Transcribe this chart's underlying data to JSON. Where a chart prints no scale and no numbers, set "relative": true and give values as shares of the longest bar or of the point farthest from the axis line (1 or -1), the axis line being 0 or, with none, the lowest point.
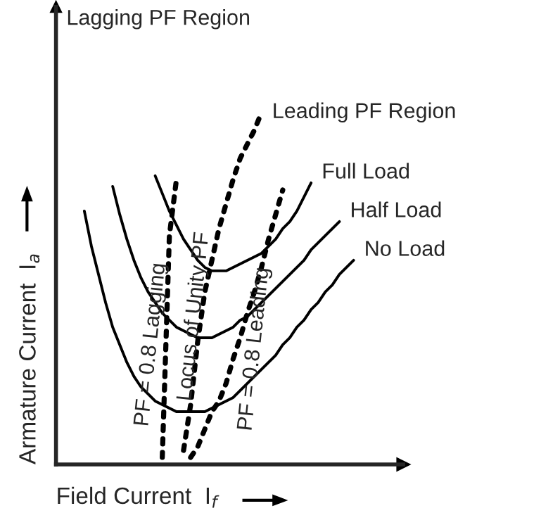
{
  "chart_data": {
    "type": "line",
    "relative": true,
    "xlabel": "Field Current  I$_{f}$",
    "ylabel": "Armature Current  I$_{a}$",
    "categories": [
      null,
      null,
      null,
      null,
      null,
      null,
      null,
      null,
      null,
      null,
      null,
      null,
      null,
      null,
      null,
      null,
      null,
      null,
      null,
      null,
      null,
      null,
      null,
      null,
      null,
      null,
      null,
      null,
      null,
      null,
      null,
      null,
      null,
      null,
      null,
      null,
      null,
      null,
      null
    ],
    "annotations": [
      "Lagging PF Region",
      "Leading PF Region"
    ],
    "grid": false,
    "marker": "none",
    "series": [
      {
        "name": "No Load",
        "color": "#000000",
        "line_style": "solid",
        "values": [
          0.72,
          0.62,
          0.54,
          0.46,
          0.39,
          0.34,
          0.29,
          0.25,
          0.22,
          0.2,
          0.18,
          0.17,
          0.16,
          0.15,
          0.15,
          0.15,
          0.15,
          0.15,
          0.16,
          0.17,
          0.18,
          0.19,
          0.21,
          0.23,
          0.25,
          0.27,
          0.29,
          0.31,
          0.34,
          0.36,
          0.39,
          0.41,
          0.44,
          0.46,
          0.49,
          0.51,
          0.54,
          0.56,
          0.58
        ]
      },
      {
        "name": "Half Load",
        "color": "#000000",
        "line_style": "solid",
        "values": [
          null,
          null,
          null,
          null,
          0.79,
          0.71,
          0.64,
          0.58,
          0.53,
          0.49,
          0.46,
          0.43,
          0.41,
          0.39,
          0.38,
          0.37,
          0.36,
          0.36,
          0.36,
          0.37,
          0.38,
          0.39,
          0.41,
          0.42,
          0.44,
          0.46,
          0.48,
          0.5,
          0.52,
          0.54,
          0.56,
          0.58,
          0.61,
          0.63,
          0.65,
          0.67,
          0.69,
          null,
          null
        ]
      },
      {
        "name": "Full Load",
        "color": "#000000",
        "line_style": "solid",
        "values": [
          null,
          null,
          null,
          null,
          null,
          null,
          null,
          null,
          null,
          null,
          0.82,
          0.77,
          0.72,
          0.68,
          0.64,
          0.61,
          0.58,
          0.56,
          0.55,
          0.55,
          0.55,
          0.56,
          0.57,
          0.58,
          0.59,
          0.6,
          0.62,
          0.64,
          0.67,
          0.69,
          0.72,
          0.76,
          0.8,
          null,
          null,
          null,
          null,
          null,
          null
        ]
      },
      {
        "name": "PF = 0.8 Lagging",
        "color": "#000000",
        "line_style": "dotted",
        "values": [
          null,
          null,
          null,
          null,
          null,
          null,
          null,
          null,
          null,
          null,
          null,
          0.02,
          0.65,
          0.81,
          null,
          null,
          null,
          null,
          null,
          null,
          null,
          null,
          null,
          null,
          null,
          null,
          null,
          null,
          null,
          null,
          null,
          null,
          null,
          null,
          null,
          null,
          null,
          null,
          null
        ]
      },
      {
        "name": "Locus of Unity PF",
        "color": "#000000",
        "line_style": "dotted",
        "values": [
          null,
          null,
          null,
          null,
          null,
          null,
          null,
          null,
          null,
          null,
          null,
          null,
          null,
          null,
          0.04,
          0.17,
          0.35,
          0.49,
          0.58,
          0.67,
          0.74,
          0.81,
          0.87,
          0.91,
          0.95,
          1.0,
          null,
          null,
          null,
          null,
          null,
          null,
          null,
          null,
          null,
          null,
          null,
          null,
          null
        ]
      },
      {
        "name": "PF = 0.8 Leading",
        "color": "#000000",
        "line_style": "dotted",
        "values": [
          null,
          null,
          null,
          null,
          null,
          null,
          null,
          null,
          null,
          null,
          null,
          null,
          null,
          null,
          null,
          0.02,
          0.05,
          0.1,
          0.15,
          0.18,
          0.23,
          0.3,
          0.36,
          0.43,
          0.49,
          0.56,
          0.64,
          0.71,
          0.78,
          null,
          null,
          null,
          null,
          null,
          null,
          null,
          null,
          null,
          null
        ]
      }
    ]
  }
}
